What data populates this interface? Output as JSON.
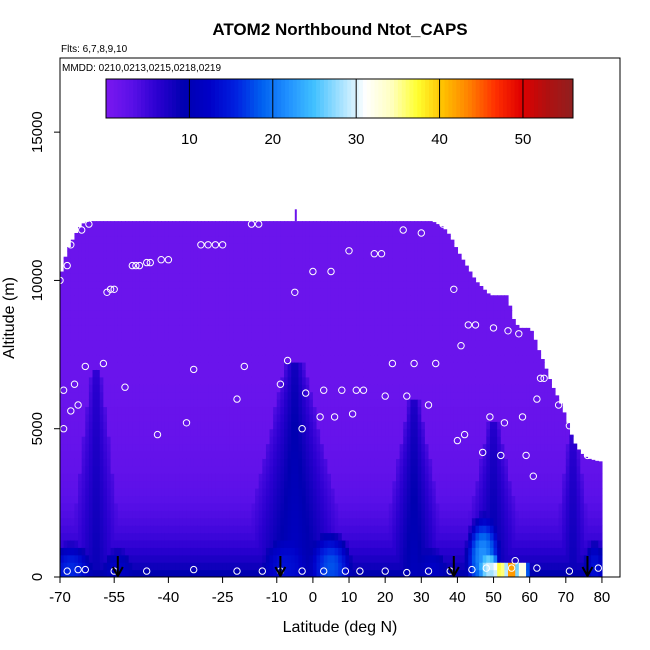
{
  "chart_data": {
    "type": "heatmap",
    "title": "ATOM2 Northbound Ntot_CAPS",
    "flights_label": "Flts: 6,7,8,9,10",
    "dates_label": "MMDD: 0210,0213,0215,0218,0219",
    "xlabel": "Latitude (deg N)",
    "ylabel": "Altitude (m)",
    "xlim": [
      -70,
      85
    ],
    "ylim": [
      0,
      17500
    ],
    "x_ticks": [
      "-70",
      "-55",
      "-40",
      "-25",
      "-10",
      "0",
      "10",
      "20",
      "30",
      "40",
      "50",
      "60",
      "70",
      "80"
    ],
    "x_tick_values": [
      -70,
      -55,
      -40,
      -25,
      -10,
      0,
      10,
      20,
      30,
      40,
      50,
      60,
      70,
      80
    ],
    "y_ticks": [
      "0",
      "5000",
      "10000",
      "15000"
    ],
    "y_tick_values": [
      0,
      5000,
      10000,
      15000
    ],
    "colorbar": {
      "min": 0,
      "max": 56,
      "ticks": [
        "10",
        "20",
        "30",
        "40",
        "50"
      ],
      "tick_values": [
        10,
        20,
        30,
        40,
        50
      ],
      "colors": [
        "#7b18f0",
        "#5a10e8",
        "#2a00d0",
        "#0000b0",
        "#0000c8",
        "#0020e0",
        "#0060f0",
        "#2090ff",
        "#40c0ff",
        "#a0e0ff",
        "#ffffff",
        "#ffffc0",
        "#ffff30",
        "#ffc000",
        "#ff8000",
        "#ff3000",
        "#e00000",
        "#b01010",
        "#902020"
      ]
    },
    "top_profile": [
      [
        -70,
        10000
      ],
      [
        -69,
        10600
      ],
      [
        -68,
        11000
      ],
      [
        -66,
        11500
      ],
      [
        -64,
        11900
      ],
      [
        -62,
        12000
      ],
      [
        -5,
        12000
      ],
      [
        33,
        12000
      ],
      [
        36,
        11800
      ],
      [
        38,
        11500
      ],
      [
        40,
        11000
      ],
      [
        42,
        10600
      ],
      [
        45,
        10000
      ],
      [
        49,
        9500
      ],
      [
        54,
        9500
      ],
      [
        55,
        8800
      ],
      [
        57,
        8400
      ],
      [
        60,
        8400
      ],
      [
        61,
        8200
      ],
      [
        62,
        7800
      ],
      [
        64,
        7200
      ],
      [
        66,
        6500
      ],
      [
        68,
        6000
      ],
      [
        70,
        5400
      ],
      [
        72,
        4600
      ],
      [
        74,
        4200
      ],
      [
        76,
        4000
      ],
      [
        79,
        3900
      ],
      [
        80,
        3900
      ],
      [
        80,
        0
      ],
      [
        -70,
        0
      ]
    ],
    "arrow_latitudes": [
      -54,
      -9,
      39,
      76
    ],
    "observations": [
      {
        "lat": -70,
        "alt": 10000
      },
      {
        "lat": -69,
        "alt": 6300
      },
      {
        "lat": -69,
        "alt": 5000
      },
      {
        "lat": -68,
        "alt": 10500
      },
      {
        "lat": -67,
        "alt": 11200
      },
      {
        "lat": -67,
        "alt": 5600
      },
      {
        "lat": -66,
        "alt": 6500
      },
      {
        "lat": -65,
        "alt": 5800
      },
      {
        "lat": -64,
        "alt": 11700
      },
      {
        "lat": -63,
        "alt": 7100
      },
      {
        "lat": -62,
        "alt": 11900
      },
      {
        "lat": -58,
        "alt": 7200
      },
      {
        "lat": -57,
        "alt": 9600
      },
      {
        "lat": -56,
        "alt": 9700
      },
      {
        "lat": -55,
        "alt": 9700
      },
      {
        "lat": -52,
        "alt": 6400
      },
      {
        "lat": -50,
        "alt": 10500
      },
      {
        "lat": -49,
        "alt": 10500
      },
      {
        "lat": -48,
        "alt": 10500
      },
      {
        "lat": -46,
        "alt": 10600
      },
      {
        "lat": -45,
        "alt": 10600
      },
      {
        "lat": -43,
        "alt": 4800
      },
      {
        "lat": -42,
        "alt": 10700
      },
      {
        "lat": -40,
        "alt": 10700
      },
      {
        "lat": -35,
        "alt": 5200
      },
      {
        "lat": -33,
        "alt": 7000
      },
      {
        "lat": -31,
        "alt": 11200
      },
      {
        "lat": -29,
        "alt": 11200
      },
      {
        "lat": -27,
        "alt": 11200
      },
      {
        "lat": -25,
        "alt": 11200
      },
      {
        "lat": -21,
        "alt": 6000
      },
      {
        "lat": -19,
        "alt": 7100
      },
      {
        "lat": -17,
        "alt": 11900
      },
      {
        "lat": -15,
        "alt": 11900
      },
      {
        "lat": -9,
        "alt": 6500
      },
      {
        "lat": -7,
        "alt": 7300
      },
      {
        "lat": -5,
        "alt": 9600
      },
      {
        "lat": -3,
        "alt": 5000
      },
      {
        "lat": -2,
        "alt": 6200
      },
      {
        "lat": 0,
        "alt": 10300
      },
      {
        "lat": 2,
        "alt": 5400
      },
      {
        "lat": 3,
        "alt": 6300
      },
      {
        "lat": 5,
        "alt": 10300
      },
      {
        "lat": 6,
        "alt": 5400
      },
      {
        "lat": 8,
        "alt": 6300
      },
      {
        "lat": 10,
        "alt": 11000
      },
      {
        "lat": 11,
        "alt": 5500
      },
      {
        "lat": 12,
        "alt": 6300
      },
      {
        "lat": 14,
        "alt": 6300
      },
      {
        "lat": 17,
        "alt": 10900
      },
      {
        "lat": 19,
        "alt": 10900
      },
      {
        "lat": 20,
        "alt": 6100
      },
      {
        "lat": 22,
        "alt": 7200
      },
      {
        "lat": 25,
        "alt": 11700
      },
      {
        "lat": 26,
        "alt": 6100
      },
      {
        "lat": 28,
        "alt": 7200
      },
      {
        "lat": 30,
        "alt": 11600
      },
      {
        "lat": 32,
        "alt": 5800
      },
      {
        "lat": 34,
        "alt": 7200
      },
      {
        "lat": 36,
        "alt": 11900
      },
      {
        "lat": 39,
        "alt": 9700
      },
      {
        "lat": 40,
        "alt": 4600
      },
      {
        "lat": 41,
        "alt": 7800
      },
      {
        "lat": 42,
        "alt": 4800
      },
      {
        "lat": 43,
        "alt": 8500
      },
      {
        "lat": 45,
        "alt": 8500
      },
      {
        "lat": 47,
        "alt": 4200
      },
      {
        "lat": 49,
        "alt": 5400
      },
      {
        "lat": 50,
        "alt": 8400
      },
      {
        "lat": 52,
        "alt": 4100
      },
      {
        "lat": 53,
        "alt": 5200
      },
      {
        "lat": 54,
        "alt": 8300
      },
      {
        "lat": 57,
        "alt": 8200
      },
      {
        "lat": 58,
        "alt": 5400
      },
      {
        "lat": 59,
        "alt": 4100
      },
      {
        "lat": 61,
        "alt": 3400
      },
      {
        "lat": 62,
        "alt": 6000
      },
      {
        "lat": 63,
        "alt": 6700
      },
      {
        "lat": 64,
        "alt": 6700
      },
      {
        "lat": 66,
        "alt": 9300
      },
      {
        "lat": 68,
        "alt": 5800
      },
      {
        "lat": 70,
        "alt": 6600
      },
      {
        "lat": 71,
        "alt": 5100
      },
      {
        "lat": 72,
        "alt": 9400
      },
      {
        "lat": 73,
        "alt": 5000
      },
      {
        "lat": 76,
        "alt": 4100
      },
      {
        "lat": 78,
        "alt": 8500
      },
      {
        "lat": 79,
        "alt": 8500
      },
      {
        "lat": -68,
        "alt": 200
      },
      {
        "lat": -65,
        "alt": 250
      },
      {
        "lat": -63,
        "alt": 250
      },
      {
        "lat": -55,
        "alt": 200
      },
      {
        "lat": -46,
        "alt": 200
      },
      {
        "lat": -33,
        "alt": 250
      },
      {
        "lat": -21,
        "alt": 200
      },
      {
        "lat": -14,
        "alt": 200
      },
      {
        "lat": -9,
        "alt": 200
      },
      {
        "lat": -3,
        "alt": 200
      },
      {
        "lat": 3,
        "alt": 200
      },
      {
        "lat": 9,
        "alt": 200
      },
      {
        "lat": 13,
        "alt": 200
      },
      {
        "lat": 20,
        "alt": 200
      },
      {
        "lat": 26,
        "alt": 150
      },
      {
        "lat": 32,
        "alt": 200
      },
      {
        "lat": 38,
        "alt": 200
      },
      {
        "lat": 44,
        "alt": 250
      },
      {
        "lat": 48,
        "alt": 300
      },
      {
        "lat": 55,
        "alt": 300
      },
      {
        "lat": 56,
        "alt": 550
      },
      {
        "lat": 62,
        "alt": 300
      },
      {
        "lat": 71,
        "alt": 200
      },
      {
        "lat": 79,
        "alt": 300
      }
    ],
    "hotspots": [
      {
        "lat": -67,
        "alt": 300,
        "radius_deg": 6,
        "radius_m": 900,
        "value": 16
      },
      {
        "lat": -54,
        "alt": 300,
        "radius_deg": 4,
        "radius_m": 700,
        "value": 12
      },
      {
        "lat": -8,
        "alt": 400,
        "radius_deg": 6,
        "radius_m": 900,
        "value": 14
      },
      {
        "lat": 5,
        "alt": 400,
        "radius_deg": 6,
        "radius_m": 1200,
        "value": 18
      },
      {
        "lat": 33,
        "alt": 300,
        "radius_deg": 4,
        "radius_m": 700,
        "value": 12
      },
      {
        "lat": 47,
        "alt": 700,
        "radius_deg": 5,
        "radius_m": 1500,
        "value": 22
      },
      {
        "lat": 49,
        "alt": 300,
        "radius_deg": 3,
        "radius_m": 500,
        "value": 30
      },
      {
        "lat": 52,
        "alt": 250,
        "radius_deg": 2,
        "radius_m": 350,
        "value": 42
      },
      {
        "lat": 55,
        "alt": 250,
        "radius_deg": 2,
        "radius_m": 350,
        "value": 50
      },
      {
        "lat": 58,
        "alt": 250,
        "radius_deg": 2,
        "radius_m": 350,
        "value": 38
      },
      {
        "lat": 78,
        "alt": 400,
        "radius_deg": 3,
        "radius_m": 900,
        "value": 14
      }
    ],
    "plumes": [
      {
        "lat_center": -5,
        "base_halfwidth_deg": 16,
        "top_alt": 7300,
        "value": 8
      },
      {
        "lat_center": 28,
        "base_halfwidth_deg": 10,
        "top_alt": 6000,
        "value": 7
      },
      {
        "lat_center": 50,
        "base_halfwidth_deg": 10,
        "top_alt": 5200,
        "value": 6
      },
      {
        "lat_center": -60,
        "base_halfwidth_deg": 8,
        "top_alt": 7000,
        "value": 5
      },
      {
        "lat_center": 72,
        "base_halfwidth_deg": 6,
        "top_alt": 5000,
        "value": 5
      }
    ]
  }
}
